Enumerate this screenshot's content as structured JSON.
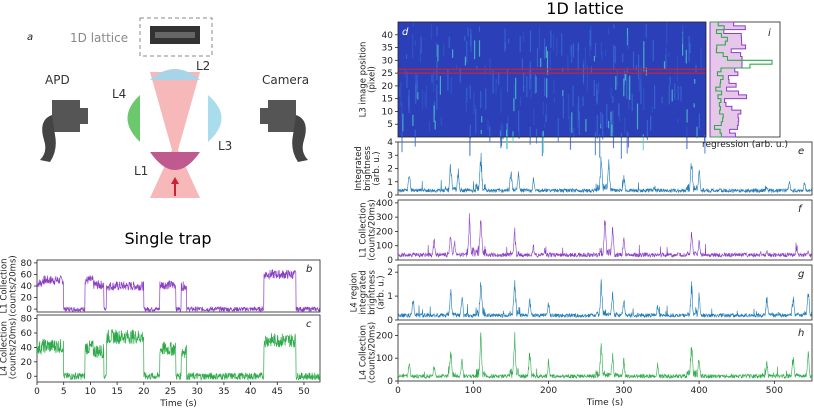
{
  "titles": {
    "lattice": "1D lattice",
    "single": "Single trap"
  },
  "schematic": {
    "panel": "a",
    "lattice_label": "1D lattice",
    "apd": "APD",
    "camera": "Camera",
    "L1": "L1",
    "L2": "L2",
    "L3": "L3",
    "L4": "L4",
    "colors": {
      "beam": "#f4a6a6",
      "l1": "#c05a8e",
      "l2": "#a9d4e8",
      "l3": "#a9dcec",
      "l4": "#6cc86c",
      "detector": "#555555"
    }
  },
  "colors": {
    "purple": "#8b3fc4",
    "green": "#2eaa4a",
    "blue": "#1f7ab8",
    "heat_bg": "#2b3fb8",
    "red_line": "#cc2233"
  },
  "chart_data": [
    {
      "panel": "b",
      "type": "line",
      "ylabel": [
        "L1 Collection",
        "(counts/20ms)"
      ],
      "ylim": [
        -5,
        85
      ],
      "yticks": [
        0,
        20,
        40,
        60,
        80
      ],
      "xlim": [
        0,
        53
      ],
      "color": "purple",
      "levels": [
        [
          0,
          1,
          45
        ],
        [
          1,
          5,
          50
        ],
        [
          5,
          9,
          0
        ],
        [
          9,
          10.5,
          50
        ],
        [
          10.5,
          12.5,
          42
        ],
        [
          12.5,
          13,
          0
        ],
        [
          13,
          20,
          40
        ],
        [
          20,
          23,
          0
        ],
        [
          23,
          26,
          42
        ],
        [
          26,
          27,
          0
        ],
        [
          27,
          28,
          40
        ],
        [
          28,
          42.5,
          0
        ],
        [
          42.5,
          48.5,
          60
        ],
        [
          48.5,
          53,
          0
        ]
      ],
      "noise": 8
    },
    {
      "panel": "c",
      "type": "line",
      "ylabel": [
        "L4 Collection",
        "(counts/20ms)"
      ],
      "ylim": [
        -8,
        85
      ],
      "yticks": [
        0,
        20,
        40,
        60,
        80
      ],
      "xlim": [
        0,
        53
      ],
      "color": "green",
      "levels": [
        [
          0,
          1,
          40
        ],
        [
          1,
          5,
          42
        ],
        [
          5,
          9,
          0
        ],
        [
          9,
          10.5,
          40
        ],
        [
          10.5,
          12.5,
          35
        ],
        [
          12.5,
          13,
          0
        ],
        [
          13,
          20,
          55
        ],
        [
          20,
          23,
          0
        ],
        [
          23,
          26,
          38
        ],
        [
          26,
          27,
          0
        ],
        [
          27,
          28,
          35
        ],
        [
          28,
          42.5,
          0
        ],
        [
          42.5,
          48.5,
          50
        ],
        [
          48.5,
          53,
          0
        ]
      ],
      "noise": 10,
      "xticks": [
        0,
        5,
        10,
        15,
        20,
        25,
        30,
        35,
        40,
        45,
        50
      ],
      "xlabel": "Time (s)"
    },
    {
      "panel": "d",
      "type": "heatmap",
      "ylabel": [
        "L3 image position",
        "(pixel)"
      ],
      "ylim": [
        0,
        45
      ],
      "yticks": [
        5,
        10,
        15,
        20,
        25,
        30,
        35,
        40
      ],
      "xlim": [
        0,
        550
      ],
      "red_lines": [
        25,
        26.5
      ]
    },
    {
      "panel": "i",
      "type": "histogram",
      "xlabel": "regression (arb. u.)"
    },
    {
      "panel": "e",
      "type": "line",
      "ylabel": [
        "Integrated",
        "brightness",
        "(arb. u.)"
      ],
      "ylim": [
        0,
        4
      ],
      "yticks": [
        0,
        1,
        2,
        3,
        4
      ],
      "xlim": [
        0,
        550
      ],
      "color": "blue",
      "events": [
        [
          15,
          2
        ],
        [
          70,
          2.8
        ],
        [
          80,
          2.2
        ],
        [
          110,
          3.8
        ],
        [
          150,
          2.4
        ],
        [
          160,
          2
        ],
        [
          180,
          1.4
        ],
        [
          270,
          3.5
        ],
        [
          280,
          2.8
        ],
        [
          300,
          1.8
        ],
        [
          340,
          0.8
        ],
        [
          390,
          3.4
        ],
        [
          400,
          2.2
        ],
        [
          490,
          0.9
        ],
        [
          520,
          1.4
        ],
        [
          540,
          1.2
        ]
      ]
    },
    {
      "panel": "f",
      "type": "line",
      "ylabel": [
        "L1 Collection",
        "(counts/20ms)"
      ],
      "ylim": [
        0,
        420
      ],
      "yticks": [
        0,
        100,
        200,
        300,
        400
      ],
      "xlim": [
        0,
        550
      ],
      "color": "purple",
      "events": [
        [
          48,
          180
        ],
        [
          70,
          250
        ],
        [
          75,
          170
        ],
        [
          95,
          380
        ],
        [
          110,
          400
        ],
        [
          155,
          260
        ],
        [
          180,
          120
        ],
        [
          195,
          90
        ],
        [
          275,
          350
        ],
        [
          285,
          250
        ],
        [
          300,
          180
        ],
        [
          345,
          60
        ],
        [
          390,
          240
        ],
        [
          400,
          170
        ],
        [
          490,
          90
        ],
        [
          530,
          120
        ],
        [
          545,
          80
        ]
      ]
    },
    {
      "panel": "g",
      "type": "line",
      "ylabel": [
        "L4 region",
        "integrated",
        "brightness",
        "(arb. u.)"
      ],
      "ylim": [
        0,
        2.3
      ],
      "yticks": [
        0,
        1,
        2
      ],
      "xlim": [
        0,
        550
      ],
      "color": "blue",
      "events": [
        [
          20,
          1.2
        ],
        [
          70,
          1.5
        ],
        [
          85,
          1.2
        ],
        [
          110,
          2.1
        ],
        [
          155,
          2.2
        ],
        [
          175,
          1.1
        ],
        [
          200,
          0.9
        ],
        [
          270,
          1.8
        ],
        [
          285,
          1.3
        ],
        [
          300,
          1.1
        ],
        [
          345,
          0.8
        ],
        [
          390,
          1.8
        ],
        [
          400,
          1.2
        ],
        [
          490,
          1.2
        ],
        [
          525,
          1.3
        ],
        [
          545,
          1.5
        ]
      ]
    },
    {
      "panel": "h",
      "type": "line",
      "ylabel": [
        "L4 Collection",
        "(counts/20ms)"
      ],
      "ylim": [
        0,
        250
      ],
      "yticks": [
        0,
        100,
        200
      ],
      "xlim": [
        0,
        550
      ],
      "color": "green",
      "events": [
        [
          15,
          100
        ],
        [
          48,
          90
        ],
        [
          70,
          170
        ],
        [
          85,
          120
        ],
        [
          110,
          220
        ],
        [
          155,
          230
        ],
        [
          175,
          150
        ],
        [
          200,
          100
        ],
        [
          270,
          200
        ],
        [
          285,
          150
        ],
        [
          300,
          110
        ],
        [
          345,
          90
        ],
        [
          390,
          200
        ],
        [
          400,
          130
        ],
        [
          490,
          110
        ],
        [
          525,
          140
        ],
        [
          545,
          160
        ]
      ],
      "xticks": [
        0,
        100,
        200,
        300,
        400,
        500
      ],
      "xlabel": "Time (s)"
    }
  ]
}
